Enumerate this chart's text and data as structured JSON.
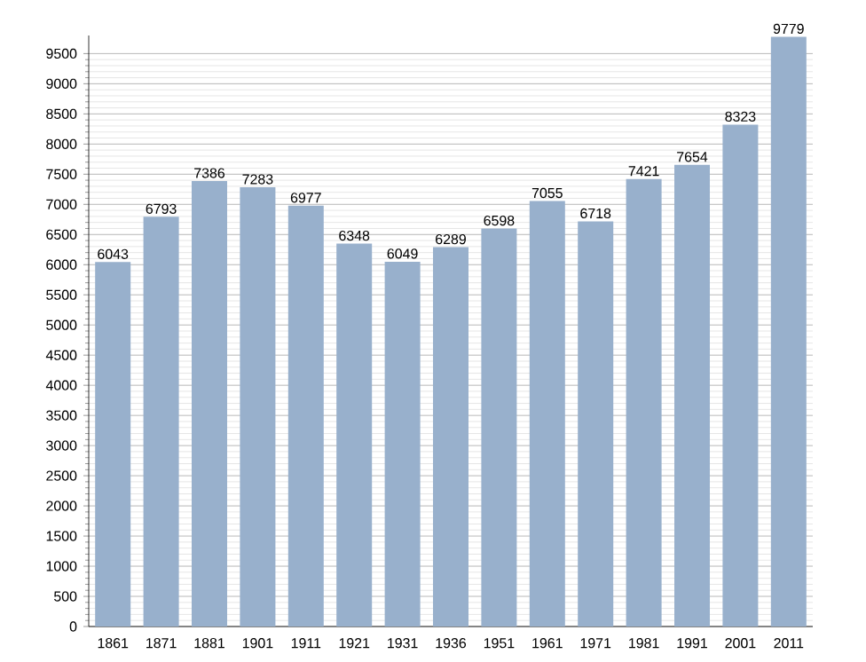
{
  "chart_data": {
    "type": "bar",
    "categories": [
      "1861",
      "1871",
      "1881",
      "1901",
      "1911",
      "1921",
      "1931",
      "1936",
      "1951",
      "1961",
      "1971",
      "1981",
      "1991",
      "2001",
      "2011"
    ],
    "values": [
      6043,
      6793,
      7386,
      7283,
      6977,
      6348,
      6049,
      6289,
      6598,
      7055,
      6718,
      7421,
      7654,
      8323,
      9779
    ],
    "color": "#98b0cc",
    "ylim": [
      0,
      9800
    ],
    "yticks": [
      0,
      500,
      1000,
      1500,
      2000,
      2500,
      3000,
      3500,
      4000,
      4500,
      5000,
      5500,
      6000,
      6500,
      7000,
      7500,
      8000,
      8500,
      9000,
      9500
    ],
    "grid": "y",
    "data_labels": true
  }
}
